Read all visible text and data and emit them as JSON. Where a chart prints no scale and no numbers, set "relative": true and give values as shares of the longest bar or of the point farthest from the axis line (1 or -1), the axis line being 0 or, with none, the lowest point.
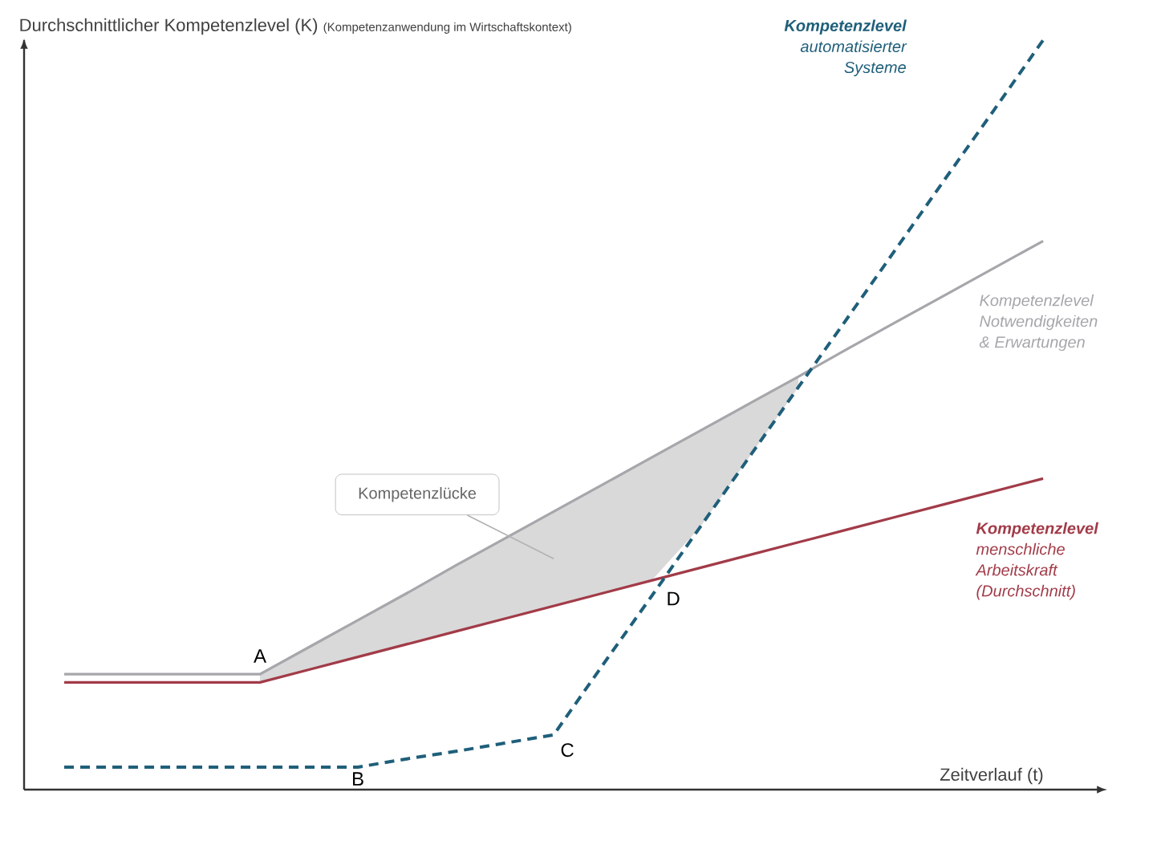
{
  "chart_data": {
    "type": "line",
    "relative": true,
    "ylabel": "Durchschnittlicher Kompetenzlevel (K)",
    "subtitle": "(Kompetenzanwendung im Wirtschaftskontext)",
    "xlabel": "Zeitverlauf (t)",
    "marker": "none",
    "categories": [
      null,
      null,
      null,
      null,
      null,
      null,
      null,
      null,
      null,
      null,
      null,
      null,
      null,
      null,
      null,
      null,
      null,
      null,
      null,
      null,
      null
    ],
    "series": [
      {
        "name": "**Kompetenzlevel** automatisierter Systeme",
        "color": "#1f5f7a",
        "line_style": "dashed",
        "values": [
          0.03,
          0.03,
          0.03,
          0.03,
          0.03,
          0.03,
          0.03,
          0.041,
          0.051,
          0.062,
          0.073,
          0.166,
          0.258,
          0.351,
          0.444,
          0.537,
          0.629,
          0.722,
          0.815,
          0.907,
          1
        ]
      },
      {
        "name": "Kompetenzlevel Notwendigkeiten & Erwartungen",
        "color": "#a6a6ab",
        "line_style": "solid",
        "values": [
          0.154,
          0.154,
          0.154,
          0.154,
          0.154,
          0.19,
          0.226,
          0.262,
          0.299,
          0.335,
          0.371,
          0.407,
          0.443,
          0.479,
          0.515,
          0.551,
          0.588,
          0.624,
          0.66,
          0.696,
          0.732
        ],
        "lower": [
          null,
          null,
          null,
          null,
          0.143,
          0.16,
          0.177,
          0.194,
          0.211,
          0.228,
          0.245,
          0.262,
          0.279,
          0.351,
          0.444,
          0.537,
          null,
          null,
          null,
          null,
          null
        ],
        "upper": [
          null,
          null,
          null,
          null,
          0.154,
          0.19,
          0.226,
          0.262,
          0.299,
          0.335,
          0.371,
          0.407,
          0.443,
          0.479,
          0.515,
          0.551,
          null,
          null,
          null,
          null,
          null
        ]
      },
      {
        "name": "**Kompetenzlevel** menschliche Arbeitskraft (Durchschnitt)",
        "color": "#a23b48",
        "line_style": "solid",
        "values": [
          0.143,
          0.143,
          0.143,
          0.143,
          0.143,
          0.16,
          0.177,
          0.194,
          0.211,
          0.228,
          0.245,
          0.262,
          0.279,
          0.296,
          0.313,
          0.33,
          0.347,
          0.364,
          0.381,
          0.398,
          0.415
        ]
      }
    ],
    "annotations": [
      "A",
      "B",
      "C",
      "D",
      "Kompetenzlücke"
    ]
  }
}
